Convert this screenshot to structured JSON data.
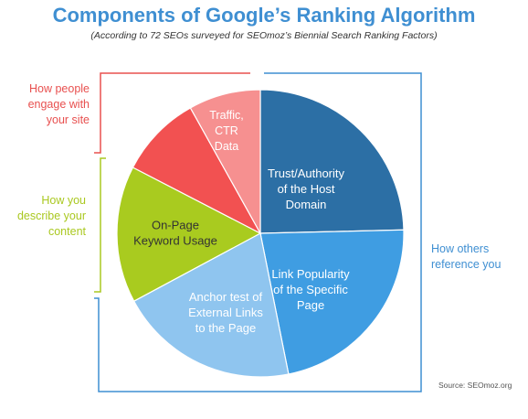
{
  "title": "Components of Google’s Ranking Algorithm",
  "subtitle": "(According to 72 SEOs surveyed for SEOmoz’s Biennial Search Ranking Factors)",
  "source": "Source: SEOmoz.org",
  "brackets": {
    "engage": [
      "How people",
      "engage with",
      "your site"
    ],
    "describe": [
      "How you",
      "describe your",
      "content"
    ],
    "reference": [
      "How others",
      "reference you"
    ]
  },
  "colors": {
    "title": "#3f8fd2",
    "engage": "#e8504f",
    "describe": "#aac820",
    "reference": "#3f8fd2"
  },
  "chart_data": {
    "type": "pie",
    "slices": [
      {
        "label": "Trust/Authority of the Host Domain",
        "value": 24.6,
        "color": "#2c6fa5",
        "text_color": "#ffffff",
        "label_lines": [
          "Trust/Authority",
          "of the Host",
          "Domain"
        ]
      },
      {
        "label": "Link Popularity of the Specific Page",
        "value": 22.2,
        "color": "#3f9de2",
        "text_color": "#ffffff",
        "label_lines": [
          "Link Popularity",
          "of the Specific",
          "Page"
        ]
      },
      {
        "label": "Anchor test of External Links to the Page",
        "value": 20.3,
        "color": "#8fc5ef",
        "text_color": "#ffffff",
        "label_lines": [
          "Anchor test of",
          "External Links",
          "to the Page"
        ]
      },
      {
        "label": "On-Page Keyword Usage",
        "value": 15.4,
        "color": "#a9cb1f",
        "text_color": "#333333",
        "label_lines": [
          "On-Page",
          "Keyword Usage"
        ]
      },
      {
        "label": "",
        "value": 9.3,
        "color": "#f25151",
        "text_color": "#ffffff",
        "label_lines": []
      },
      {
        "label": "Traffic, CTR Data",
        "value": 8.1,
        "color": "#f69090",
        "text_color": "#ffffff",
        "label_lines": [
          "Traffic,",
          "CTR",
          "Data"
        ]
      }
    ]
  }
}
